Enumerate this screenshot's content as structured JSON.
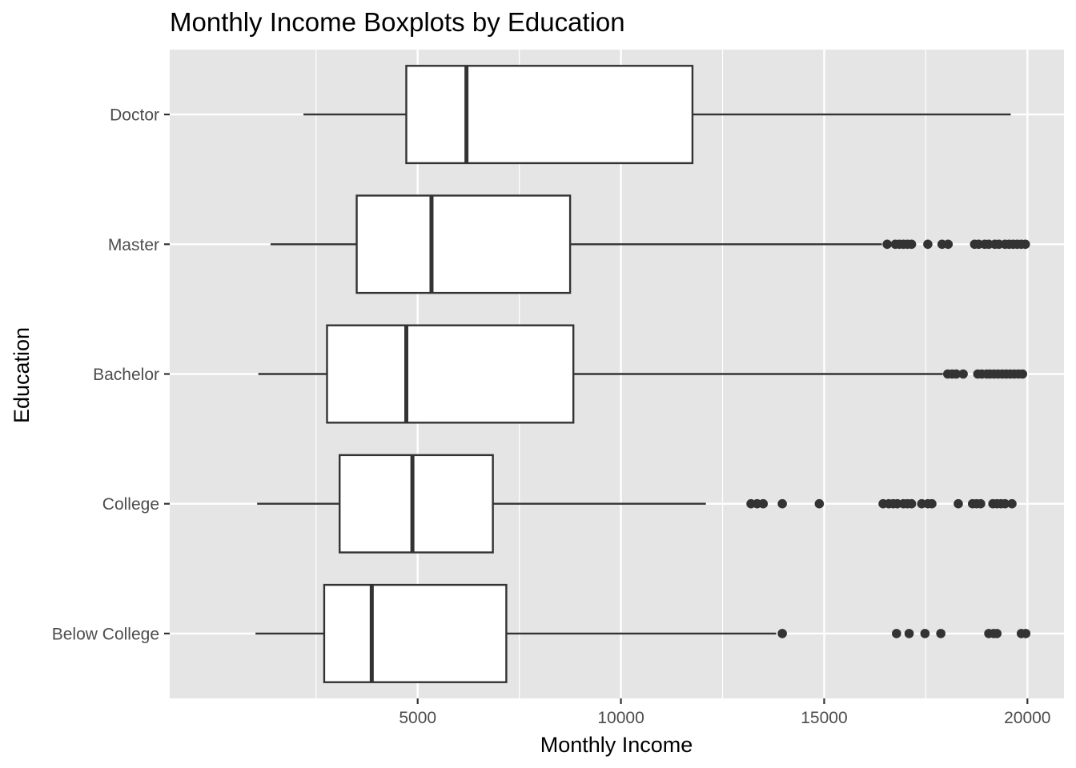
{
  "chart_data": {
    "type": "boxplot",
    "orientation": "horizontal",
    "title": "Monthly Income Boxplots by Education",
    "xlabel": "Monthly Income",
    "ylabel": "Education",
    "xlim": [
      -1100,
      20900
    ],
    "x_ticks": [
      5000,
      10000,
      15000,
      20000
    ],
    "x_tick_labels": [
      "5000",
      "10000",
      "15000",
      "20000"
    ],
    "grid": true,
    "categories": [
      "Doctor",
      "Master",
      "Bachelor",
      "College",
      "Below College"
    ],
    "boxes": [
      {
        "category": "Doctor",
        "whisker_low": 2190,
        "q1": 4720,
        "median": 6200,
        "q3": 11760,
        "whisker_high": 19590,
        "outliers": []
      },
      {
        "category": "Master",
        "whisker_low": 1380,
        "q1": 3500,
        "median": 5340,
        "q3": 8750,
        "whisker_high": 16420,
        "outliers": [
          16550,
          16750,
          16850,
          16950,
          17050,
          17150,
          17550,
          17900,
          18050,
          18700,
          18800,
          18950,
          19050,
          19200,
          19300,
          19450,
          19550,
          19650,
          19750,
          19850,
          19950
        ]
      },
      {
        "category": "Bachelor",
        "whisker_low": 1080,
        "q1": 2770,
        "median": 4720,
        "q3": 8830,
        "whisker_high": 17920,
        "outliers": [
          18040,
          18150,
          18250,
          18420,
          18780,
          18880,
          19000,
          19080,
          19180,
          19280,
          19380,
          19480,
          19580,
          19680,
          19780,
          19880
        ]
      },
      {
        "category": "College",
        "whisker_low": 1050,
        "q1": 3080,
        "median": 4870,
        "q3": 6850,
        "whisker_high": 12090,
        "outliers": [
          13200,
          13350,
          13500,
          13970,
          14880,
          16450,
          16590,
          16700,
          16800,
          16950,
          17050,
          17150,
          17400,
          17550,
          17650,
          18300,
          18650,
          18750,
          18850,
          19150,
          19250,
          19350,
          19450,
          19620
        ]
      },
      {
        "category": "Below College",
        "whisker_low": 1010,
        "q1": 2700,
        "median": 3870,
        "q3": 7180,
        "whisker_high": 13820,
        "outliers": [
          13970,
          16780,
          17090,
          17480,
          17870,
          19050,
          19170,
          19250,
          19850,
          19960
        ]
      }
    ]
  }
}
